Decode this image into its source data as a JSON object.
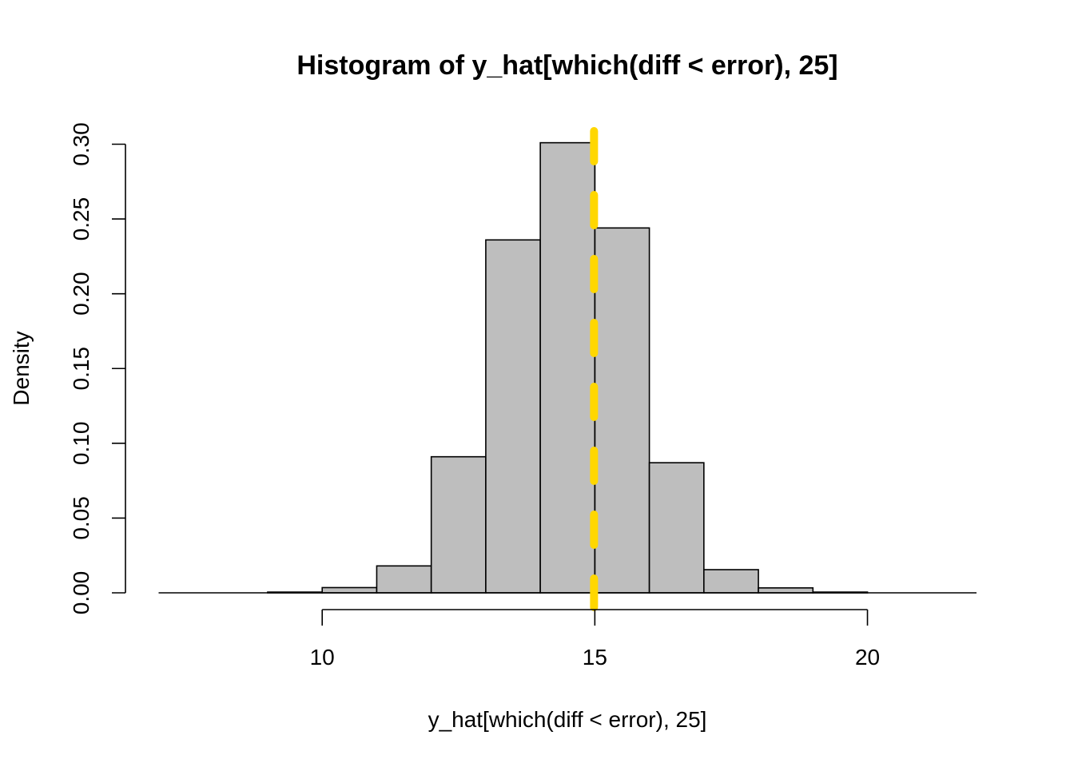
{
  "chart_data": {
    "type": "bar",
    "title": "Histogram of y_hat[which(diff < error), 25]",
    "xlabel": "y_hat[which(diff < error), 25]",
    "ylabel": "Density",
    "bins": [
      {
        "from": 7,
        "to": 8,
        "density": 0.0
      },
      {
        "from": 8,
        "to": 9,
        "density": 0.0
      },
      {
        "from": 9,
        "to": 10,
        "density": 0.0005
      },
      {
        "from": 10,
        "to": 11,
        "density": 0.0035
      },
      {
        "from": 11,
        "to": 12,
        "density": 0.018
      },
      {
        "from": 12,
        "to": 13,
        "density": 0.091
      },
      {
        "from": 13,
        "to": 14,
        "density": 0.236
      },
      {
        "from": 14,
        "to": 15,
        "density": 0.301
      },
      {
        "from": 15,
        "to": 16,
        "density": 0.244
      },
      {
        "from": 16,
        "to": 17,
        "density": 0.087
      },
      {
        "from": 17,
        "to": 18,
        "density": 0.0155
      },
      {
        "from": 18,
        "to": 19,
        "density": 0.0033
      },
      {
        "from": 19,
        "to": 20,
        "density": 0.0005
      },
      {
        "from": 20,
        "to": 21,
        "density": 0.0
      },
      {
        "from": 21,
        "to": 22,
        "density": 0.0
      }
    ],
    "xlim": [
      7,
      22
    ],
    "ylim": [
      0,
      0.3
    ],
    "x_ticks": [
      10,
      15,
      20
    ],
    "y_ticks": [
      "0.00",
      "0.05",
      "0.10",
      "0.15",
      "0.20",
      "0.25",
      "0.30"
    ],
    "reference_line": {
      "x": 15,
      "color": "#FFD700",
      "style": "dashed"
    },
    "bar_fill": "#BEBEBE",
    "bar_stroke": "#000000",
    "grid": false
  }
}
